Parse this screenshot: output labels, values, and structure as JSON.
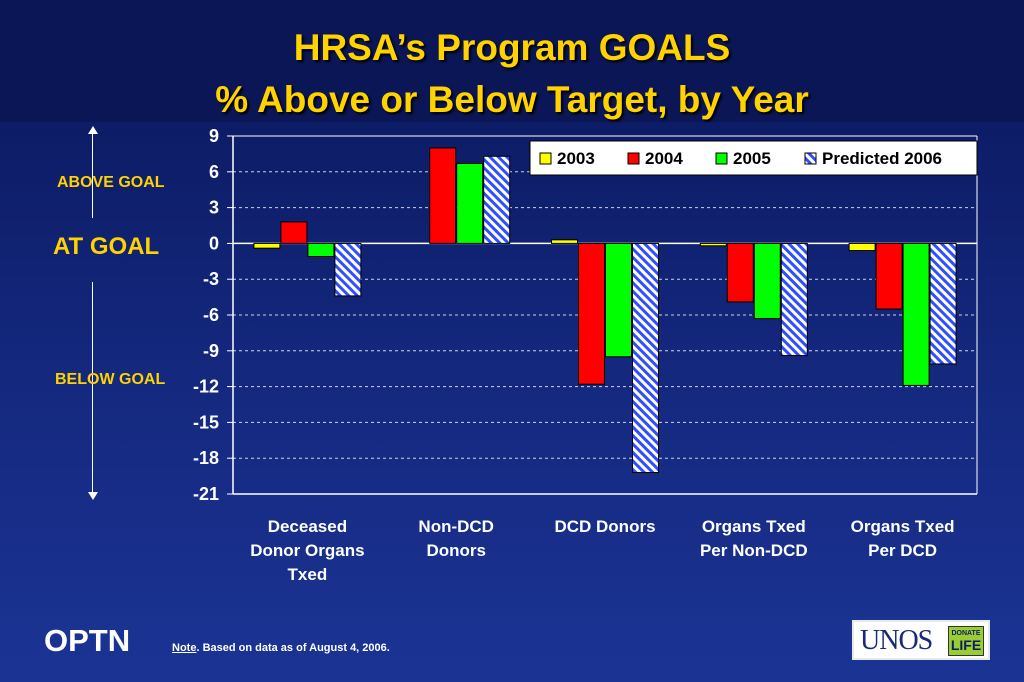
{
  "title_line1": "HRSA’s Program GOALS",
  "title_line2": "% Above or Below Target, by Year",
  "side_labels": {
    "above": "ABOVE GOAL",
    "at": "AT GOAL",
    "below": "BELOW GOAL"
  },
  "footer": {
    "org": "OPTN",
    "note_label": "Note",
    "note_text": ".  Based on data as of August 4, 2006.",
    "logo_text": "UNOS",
    "logo_badge_top": "DONATE",
    "logo_badge_bottom": "LIFE"
  },
  "colors": {
    "title": "#ffd200",
    "2003": "#ffff00",
    "2004": "#ff0000",
    "2005": "#00ff00",
    "predicted_2006": "#2f4fff"
  },
  "chart_data": {
    "type": "bar",
    "categories": [
      [
        "Deceased",
        "Donor Organs",
        "Txed"
      ],
      [
        "Non-DCD",
        "Donors"
      ],
      [
        "DCD Donors"
      ],
      [
        "Organs Txed",
        "Per Non-DCD"
      ],
      [
        "Organs Txed",
        "Per DCD"
      ]
    ],
    "series": [
      {
        "name": "2003",
        "values": [
          -0.4,
          0,
          0.3,
          -0.2,
          -0.6
        ]
      },
      {
        "name": "2004",
        "values": [
          1.8,
          8.0,
          -11.8,
          -4.9,
          -5.5
        ]
      },
      {
        "name": "2005",
        "values": [
          -1.1,
          6.7,
          -9.5,
          -6.3,
          -11.9
        ]
      },
      {
        "name": "Predicted 2006",
        "values": [
          -4.4,
          7.3,
          -19.2,
          -9.4,
          -10.1
        ]
      }
    ],
    "ylim": [
      -21,
      9
    ],
    "yticks": [
      "9",
      "6",
      "3",
      "0",
      "-3",
      "-6",
      "-9",
      "-12",
      "-15",
      "-18",
      "-21"
    ],
    "grid": true,
    "legend_position": "top-right"
  }
}
